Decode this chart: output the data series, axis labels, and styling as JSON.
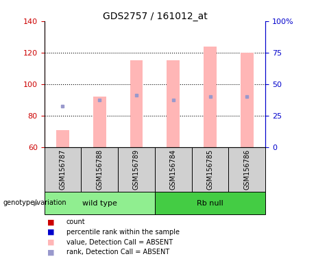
{
  "title": "GDS2757 / 161012_at",
  "samples": [
    "GSM156787",
    "GSM156788",
    "GSM156789",
    "GSM156784",
    "GSM156785",
    "GSM156786"
  ],
  "group_ranges": [
    [
      0,
      3,
      "wild type",
      "#90ee90"
    ],
    [
      3,
      6,
      "Rb null",
      "#44cc44"
    ]
  ],
  "ylim": [
    60,
    140
  ],
  "y2lim": [
    0,
    100
  ],
  "yticks": [
    60,
    80,
    100,
    120,
    140
  ],
  "y2ticks": [
    0,
    25,
    50,
    75,
    100
  ],
  "pink_bar_top": [
    71,
    92,
    115,
    115,
    124,
    120
  ],
  "pink_bar_bottom": 60,
  "blue_square_y": [
    86,
    90,
    93,
    90,
    92,
    92
  ],
  "pink_color": "#ffb6b6",
  "blue_color": "#9999cc",
  "bar_width": 0.35,
  "left_tick_color": "#cc0000",
  "right_tick_color": "#0000cc",
  "grid_linestyle": "dotted",
  "grid_color": "#000000",
  "grid_linewidth": 0.8,
  "sample_box_color": "#d0d0d0",
  "genotype_label": "genotype/variation",
  "legend_colors": [
    "#cc0000",
    "#0000cc",
    "#ffb6b6",
    "#9999cc"
  ],
  "legend_labels": [
    "count",
    "percentile rank within the sample",
    "value, Detection Call = ABSENT",
    "rank, Detection Call = ABSENT"
  ]
}
